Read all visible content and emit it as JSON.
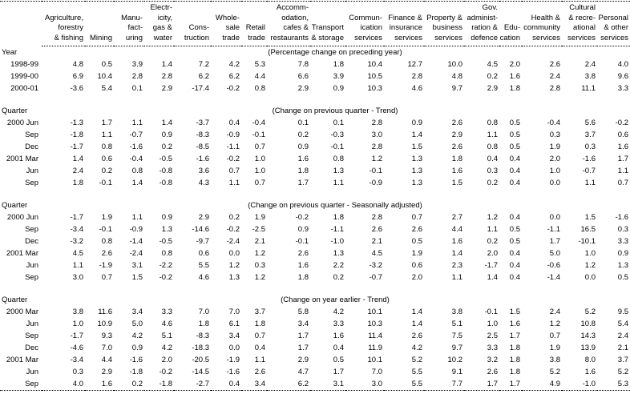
{
  "page": {
    "background": "#ffffff",
    "text_color": "#000000",
    "rule_color": "#000000",
    "rule_style": "dotted"
  },
  "table": {
    "corner_label": "",
    "columns": [
      {
        "key": "agriculture-forestry-fishing",
        "label": "Agriculture,\nforestry\n& fishing"
      },
      {
        "key": "mining",
        "label": "Mining"
      },
      {
        "key": "manufacturing",
        "label": "Manu-\nfact-\nuring"
      },
      {
        "key": "electricity-gas-water",
        "label": "Electr-\nicity,\ngas &\nwater"
      },
      {
        "key": "construction",
        "label": "Cons-\ntruction"
      },
      {
        "key": "wholesale-trade",
        "label": "Whole-\nsale\ntrade"
      },
      {
        "key": "retail-trade",
        "label": "Retail\ntrade"
      },
      {
        "key": "accommodation-cafes-restaurants",
        "label": "Accomm-\nodation,\ncafes &\nrestaurants"
      },
      {
        "key": "transport-storage",
        "label": "Transport\n& storage"
      },
      {
        "key": "communication-services",
        "label": "Commun-\nication\nservices"
      },
      {
        "key": "finance-insurance-services",
        "label": "Finance &\ninsurance\nservices"
      },
      {
        "key": "property-business-services",
        "label": "Property &\nbusiness\nservices"
      },
      {
        "key": "gov-administration-defence",
        "label": "Gov.\nadminist-\nration &\ndefence"
      },
      {
        "key": "education",
        "label": "Edu-\ncation"
      },
      {
        "key": "health-community-services",
        "label": "Health &\ncommunity\nservices"
      },
      {
        "key": "cultural-recreational-services",
        "label": "Cultural\n& recre-\national\nservices"
      },
      {
        "key": "personal-other-services",
        "label": "Personal\n& other\nservices"
      }
    ],
    "sections": [
      {
        "label": "Year",
        "caption": "(Percentage change on preceding year)",
        "rows": [
          {
            "label": "1998-99",
            "values": [
              "4.8",
              "0.5",
              "3.9",
              "1.4",
              "7.2",
              "4.2",
              "5.3",
              "7.8",
              "1.8",
              "10.4",
              "12.7",
              "10.0",
              "4.5",
              "2.0",
              "2.6",
              "2.4",
              "4.0"
            ]
          },
          {
            "label": "1999-00",
            "values": [
              "6.9",
              "10.4",
              "2.8",
              "2.8",
              "6.2",
              "6.2",
              "4.4",
              "6.6",
              "3.9",
              "10.5",
              "2.8",
              "4.8",
              "0.2",
              "1.6",
              "2.4",
              "3.8",
              "9.6"
            ]
          },
          {
            "label": "2000-01",
            "values": [
              "-3.6",
              "5.4",
              "0.1",
              "2.9",
              "-17.4",
              "-0.2",
              "0.8",
              "2.9",
              "0.9",
              "10.3",
              "4.6",
              "9.7",
              "2.9",
              "1.8",
              "2.8",
              "11.1",
              "3.3"
            ]
          }
        ]
      },
      {
        "label": "Quarter",
        "caption": "(Change on previous quarter - Trend)",
        "rows": [
          {
            "label": "2000 Jun",
            "values": [
              "-1.3",
              "1.7",
              "1.1",
              "1.4",
              "-3.7",
              "0.4",
              "-0.4",
              "0.1",
              "0.1",
              "2.8",
              "0.9",
              "2.6",
              "0.8",
              "0.5",
              "-0.4",
              "5.6",
              "-0.2"
            ]
          },
          {
            "label": "Sep",
            "values": [
              "-1.8",
              "1.1",
              "-0.7",
              "0.9",
              "-8.3",
              "-0.9",
              "-0.1",
              "0.2",
              "-0.3",
              "3.0",
              "1.4",
              "2.9",
              "1.1",
              "0.5",
              "0.3",
              "3.7",
              "0.6"
            ]
          },
          {
            "label": "Dec",
            "values": [
              "-1.7",
              "0.8",
              "-1.6",
              "0.2",
              "-8.5",
              "-1.1",
              "0.7",
              "0.9",
              "-0.1",
              "2.8",
              "1.5",
              "2.6",
              "0.8",
              "0.5",
              "1.9",
              "0.3",
              "1.6"
            ]
          },
          {
            "label": "2001 Mar",
            "values": [
              "1.4",
              "0.6",
              "-0.4",
              "-0.5",
              "-1.6",
              "-0.2",
              "1.0",
              "1.6",
              "0.8",
              "1.2",
              "1.3",
              "1.8",
              "0.4",
              "0.4",
              "2.0",
              "-1.6",
              "1.7"
            ]
          },
          {
            "label": "Jun",
            "values": [
              "2.4",
              "0.2",
              "0.8",
              "-0.8",
              "3.6",
              "0.7",
              "1.0",
              "1.8",
              "1.3",
              "-0.1",
              "1.3",
              "1.6",
              "0.3",
              "0.4",
              "1.0",
              "-0.7",
              "1.1"
            ]
          },
          {
            "label": "Sep",
            "values": [
              "1.8",
              "-0.1",
              "1.4",
              "-0.8",
              "4.3",
              "1.1",
              "0.7",
              "1.7",
              "1.1",
              "-0.9",
              "1.3",
              "1.5",
              "0.2",
              "0.4",
              "0.0",
              "1.1",
              "0.7"
            ]
          }
        ]
      },
      {
        "label": "Quarter",
        "caption": "(Change on previous quarter - Seasonally adjusted)",
        "rows": [
          {
            "label": "2000 Jun",
            "values": [
              "-1.7",
              "1.9",
              "1.1",
              "0.9",
              "2.9",
              "0.2",
              "1.9",
              "-0.2",
              "1.8",
              "2.8",
              "0.7",
              "2.7",
              "1.2",
              "0.4",
              "0.0",
              "1.5",
              "-1.6"
            ]
          },
          {
            "label": "Sep",
            "values": [
              "-3.4",
              "-0.1",
              "-0.9",
              "1.3",
              "-14.6",
              "-0.2",
              "-2.5",
              "0.9",
              "-1.1",
              "2.6",
              "2.6",
              "4.4",
              "1.1",
              "0.5",
              "-1.1",
              "16.5",
              "0.3"
            ]
          },
          {
            "label": "Dec",
            "values": [
              "-3.2",
              "0.8",
              "-1.4",
              "-0.5",
              "-9.7",
              "-2.4",
              "2.1",
              "-0.1",
              "-1.0",
              "2.1",
              "0.5",
              "1.6",
              "0.2",
              "0.5",
              "1.7",
              "-10.1",
              "3.3"
            ]
          },
          {
            "label": "2001 Mar",
            "values": [
              "4.5",
              "2.6",
              "-2.4",
              "0.8",
              "0.6",
              "0.0",
              "1.2",
              "2.6",
              "1.3",
              "4.5",
              "1.9",
              "1.4",
              "2.0",
              "0.4",
              "5.0",
              "1.0",
              "0.9"
            ]
          },
          {
            "label": "Jun",
            "values": [
              "1.1",
              "-1.9",
              "3.1",
              "-2.2",
              "5.5",
              "1.2",
              "0.3",
              "1.6",
              "2.2",
              "-3.2",
              "0.6",
              "2.3",
              "-1.7",
              "0.4",
              "-0.6",
              "1.2",
              "1.3"
            ]
          },
          {
            "label": "Sep",
            "values": [
              "3.0",
              "0.7",
              "1.5",
              "-0.2",
              "4.6",
              "1.3",
              "1.2",
              "1.8",
              "0.2",
              "-0.7",
              "2.0",
              "1.1",
              "1.4",
              "0.4",
              "-1.4",
              "0.0",
              "0.5"
            ]
          }
        ]
      },
      {
        "label": "Quarter",
        "caption": "(Change on year earlier - Trend)",
        "rows": [
          {
            "label": "2000 Mar",
            "values": [
              "3.8",
              "11.6",
              "3.4",
              "3.3",
              "7.0",
              "7.0",
              "3.7",
              "5.8",
              "4.2",
              "10.1",
              "1.4",
              "3.8",
              "-0.1",
              "1.5",
              "2.4",
              "5.2",
              "9.5"
            ]
          },
          {
            "label": "Jun",
            "values": [
              "1.0",
              "10.9",
              "5.0",
              "4.6",
              "1.8",
              "6.1",
              "1.8",
              "3.4",
              "3.3",
              "10.3",
              "1.4",
              "5.1",
              "1.0",
              "1.6",
              "1.2",
              "10.8",
              "5.4"
            ]
          },
          {
            "label": "Sep",
            "values": [
              "-1.7",
              "9.3",
              "4.2",
              "5.1",
              "-8.3",
              "3.4",
              "0.7",
              "1.7",
              "1.6",
              "11.4",
              "2.6",
              "7.5",
              "2.5",
              "1.7",
              "0.7",
              "14.3",
              "2.4"
            ]
          },
          {
            "label": "Dec",
            "values": [
              "-4.6",
              "7.0",
              "0.9",
              "4.2",
              "-18.3",
              "0.0",
              "0.4",
              "1.7",
              "0.4",
              "11.9",
              "4.2",
              "9.7",
              "3.3",
              "1.8",
              "1.9",
              "13.9",
              "2.1"
            ]
          },
          {
            "label": "2001 Mar",
            "values": [
              "-3.4",
              "4.4",
              "-1.6",
              "2.0",
              "-20.5",
              "-1.9",
              "1.1",
              "2.9",
              "0.5",
              "10.1",
              "5.2",
              "10.2",
              "3.2",
              "1.8",
              "3.8",
              "8.0",
              "3.7"
            ]
          },
          {
            "label": "Jun",
            "values": [
              "0.3",
              "2.9",
              "-1.8",
              "-0.2",
              "-14.5",
              "-1.6",
              "2.6",
              "4.7",
              "1.7",
              "7.0",
              "5.5",
              "9.1",
              "2.6",
              "1.8",
              "5.2",
              "1.6",
              "5.2"
            ]
          },
          {
            "label": "Sep",
            "values": [
              "4.0",
              "1.6",
              "0.2",
              "-1.8",
              "-2.7",
              "0.4",
              "3.4",
              "6.2",
              "3.1",
              "3.0",
              "5.5",
              "7.7",
              "1.7",
              "1.7",
              "4.9",
              "-1.0",
              "5.3"
            ]
          }
        ]
      }
    ]
  }
}
